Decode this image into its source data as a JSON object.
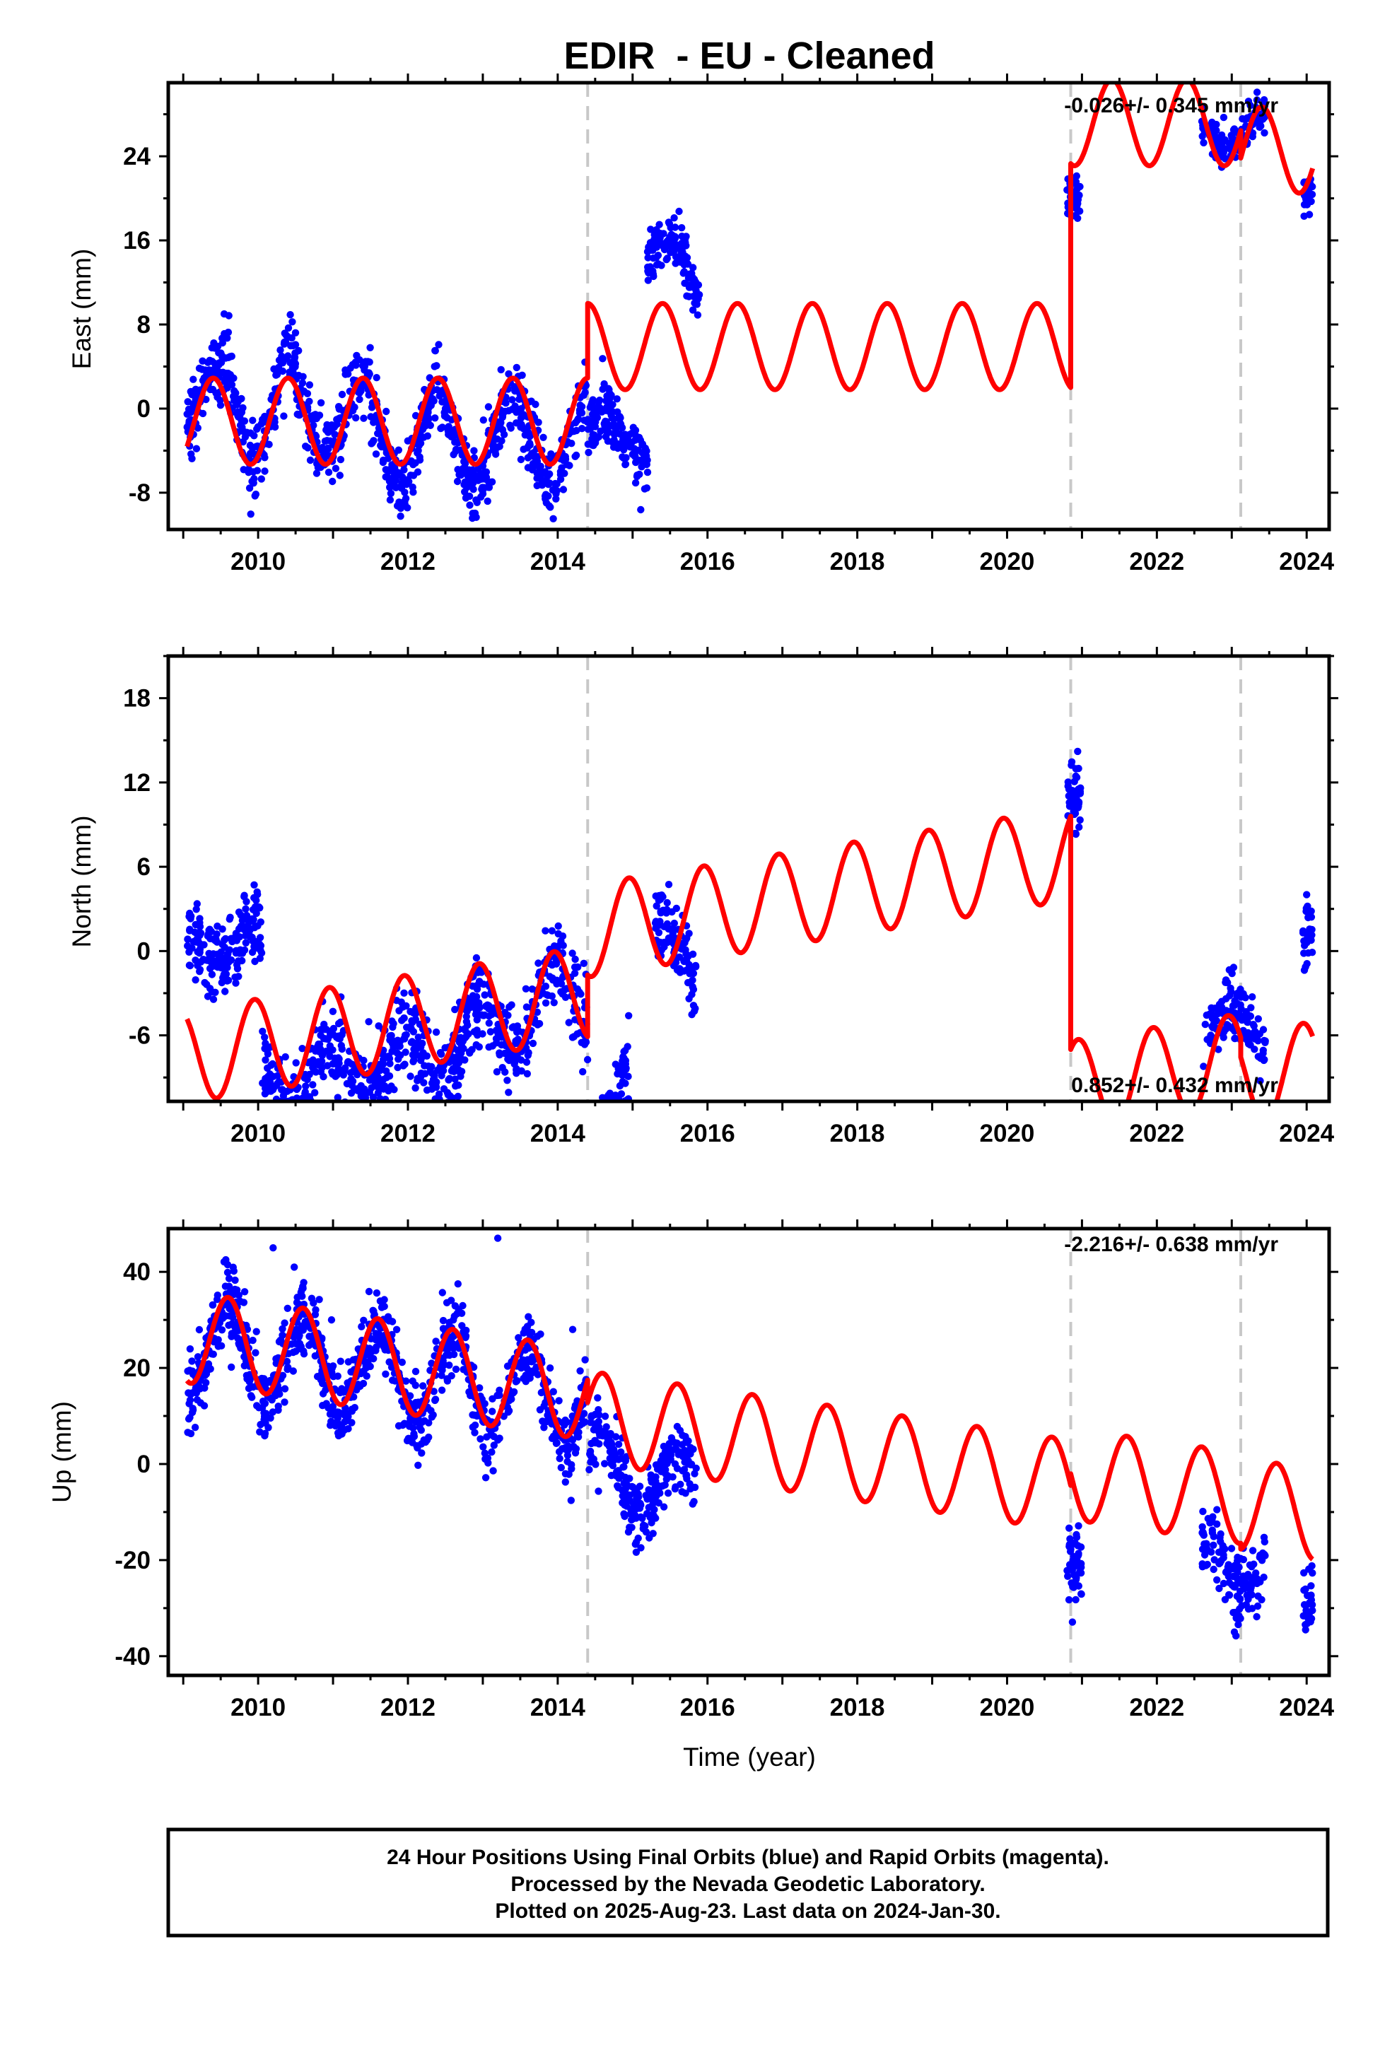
{
  "title": "EDIR  - EU - Cleaned",
  "xlabel": "Time (year)",
  "footer": {
    "line1": "24 Hour Positions Using Final Orbits (blue) and Rapid Orbits (magenta).",
    "line2": "Processed by the Nevada Geodetic Laboratory.",
    "line3": "Plotted on 2025-Aug-23. Last data on 2024-Jan-30."
  },
  "colors": {
    "data": "#0000ff",
    "model": "#ff0000",
    "steps": "#c8c8c8",
    "frame": "#000000"
  },
  "chart_data": [
    {
      "type": "scatter",
      "component": "east",
      "ylabel": "East (mm)",
      "rate_text": "-0.026+/- 0.345 mm/yr",
      "xlim": [
        2008.8,
        2024.3
      ],
      "ylim": [
        -11.5,
        31
      ],
      "xticks": [
        2010,
        2012,
        2014,
        2016,
        2018,
        2020,
        2022,
        2024
      ],
      "yticks": [
        -8,
        0,
        8,
        16,
        24
      ],
      "step_epochs": [
        2014.4,
        2020.85,
        2023.12
      ],
      "model_segments": [
        {
          "x0": 2009.05,
          "x1": 2014.4,
          "offset": -1.2,
          "trend": 0.0,
          "amp": 4.1,
          "phase": 2009.4
        },
        {
          "x0": 2014.4,
          "x1": 2020.85,
          "offset": 5.9,
          "trend": 0.0,
          "amp": 4.1,
          "phase": 2009.4
        },
        {
          "x0": 2020.85,
          "x1": 2023.12,
          "offset": 27.2,
          "trend": 0.0,
          "amp": 4.1,
          "phase": 2009.4
        },
        {
          "x0": 2023.12,
          "x1": 2024.08,
          "offset": 24.6,
          "trend": 0.0,
          "amp": 4.1,
          "phase": 2009.4
        }
      ],
      "data_segments": [
        {
          "x0": 2009.05,
          "x1": 2009.5,
          "offset": 0.0,
          "trend": 0.0,
          "amp": 3.5,
          "phase": 2009.4,
          "noise": 1.6,
          "n": 90
        },
        {
          "x0": 2009.5,
          "x1": 2010.5,
          "offset": 0.6,
          "trend": 0.0,
          "amp": 5.5,
          "phase": 2010.45,
          "noise": 1.6,
          "n": 180
        },
        {
          "x0": 2010.5,
          "x1": 2011.5,
          "offset": -0.5,
          "trend": 0.0,
          "amp": 4.0,
          "phase": 2011.4,
          "noise": 1.6,
          "n": 180
        },
        {
          "x0": 2011.5,
          "x1": 2012.5,
          "offset": -3.0,
          "trend": 0.0,
          "amp": 4.5,
          "phase": 2012.4,
          "noise": 1.7,
          "n": 180
        },
        {
          "x0": 2012.5,
          "x1": 2014.4,
          "offset": -3.0,
          "trend": 0.0,
          "amp": 4.0,
          "phase": 2013.4,
          "noise": 1.7,
          "n": 320
        },
        {
          "x0": 2014.4,
          "x1": 2015.2,
          "offset": -2.5,
          "trend": 0.0,
          "amp": 2.5,
          "phase": 2014.6,
          "noise": 1.5,
          "n": 150
        },
        {
          "x0": 2015.2,
          "x1": 2015.9,
          "offset": 12.0,
          "trend": -3.0,
          "amp": 2.5,
          "phase": 2015.5,
          "noise": 1.3,
          "n": 140
        },
        {
          "x0": 2020.8,
          "x1": 2020.98,
          "offset": 20.0,
          "trend": 0.0,
          "amp": 0.0,
          "phase": 2021.0,
          "noise": 1.0,
          "n": 50
        },
        {
          "x0": 2022.6,
          "x1": 2023.45,
          "offset": 26.5,
          "trend": 0.0,
          "amp": 1.5,
          "phase": 2023.4,
          "noise": 1.0,
          "n": 120
        },
        {
          "x0": 2023.95,
          "x1": 2024.08,
          "offset": 20.5,
          "trend": 0.0,
          "amp": 0.0,
          "phase": 2024.0,
          "noise": 0.8,
          "n": 25
        }
      ]
    },
    {
      "type": "scatter",
      "component": "north",
      "ylabel": "North (mm)",
      "rate_text": "0.852+/- 0.432 mm/yr",
      "xlim": [
        2008.8,
        2024.3
      ],
      "ylim": [
        -10.7,
        21
      ],
      "xticks": [
        2010,
        2012,
        2014,
        2016,
        2018,
        2020,
        2022,
        2024
      ],
      "yticks": [
        -6,
        0,
        6,
        12,
        18
      ],
      "step_epochs": [
        2014.4,
        2020.85,
        2023.12
      ],
      "model_segments": [
        {
          "x0": 2009.05,
          "x1": 2014.4,
          "offset": -1.6,
          "trend": 0.85,
          "amp": 3.3,
          "phase": 2009.95
        },
        {
          "x0": 2014.4,
          "x1": 2020.85,
          "offset": 2.8,
          "trend": 0.85,
          "amp": 3.3,
          "phase": 2009.95
        },
        {
          "x0": 2020.85,
          "x1": 2023.12,
          "offset": -13.8,
          "trend": 0.85,
          "amp": 3.3,
          "phase": 2009.95
        },
        {
          "x0": 2023.12,
          "x1": 2024.08,
          "offset": -15.2,
          "trend": 0.85,
          "amp": 3.3,
          "phase": 2009.95
        }
      ],
      "data_segments": [
        {
          "x0": 2009.05,
          "x1": 2010.05,
          "offset": 0.5,
          "trend": 0.0,
          "amp": 1.2,
          "phase": 2009.95,
          "noise": 1.4,
          "n": 190
        },
        {
          "x0": 2010.05,
          "x1": 2011.9,
          "offset": -3.6,
          "trend": 1.0,
          "amp": 2.0,
          "phase": 2011.95,
          "noise": 1.5,
          "n": 330
        },
        {
          "x0": 2011.9,
          "x1": 2014.4,
          "offset": 1.2,
          "trend": 2.3,
          "amp": 2.5,
          "phase": 2012.95,
          "noise": 1.4,
          "n": 440
        },
        {
          "x0": 2014.4,
          "x1": 2014.95,
          "offset": 10.0,
          "trend": 17.0,
          "amp": 0.0,
          "phase": 2015.0,
          "noise": 1.3,
          "n": 110
        },
        {
          "x0": 2014.95,
          "x1": 2015.3,
          "offset": 19.3,
          "trend": -38.0,
          "amp": 0.0,
          "phase": 2015.0,
          "noise": 1.4,
          "n": 70
        },
        {
          "x0": 2015.3,
          "x1": 2015.85,
          "offset": -2.0,
          "trend": -5.0,
          "amp": 1.0,
          "phase": 2015.5,
          "noise": 1.3,
          "n": 100
        },
        {
          "x0": 2020.8,
          "x1": 2020.98,
          "offset": 11.0,
          "trend": 0.0,
          "amp": 0.0,
          "phase": 2021.0,
          "noise": 1.3,
          "n": 45
        },
        {
          "x0": 2022.6,
          "x1": 2023.45,
          "offset": -5.5,
          "trend": 0.0,
          "amp": 1.2,
          "phase": 2023.0,
          "noise": 1.2,
          "n": 130
        },
        {
          "x0": 2023.95,
          "x1": 2024.08,
          "offset": 1.0,
          "trend": 0.0,
          "amp": 0.0,
          "phase": 2024.0,
          "noise": 1.1,
          "n": 25
        }
      ]
    },
    {
      "type": "scatter",
      "component": "up",
      "ylabel": "Up (mm)",
      "rate_text": "-2.216+/- 0.638 mm/yr",
      "xlim": [
        2008.8,
        2024.3
      ],
      "ylim": [
        -44,
        49
      ],
      "xticks": [
        2010,
        2012,
        2014,
        2016,
        2018,
        2020,
        2022,
        2024
      ],
      "yticks": [
        -40,
        -20,
        0,
        20,
        40
      ],
      "step_epochs": [
        2014.4,
        2020.85,
        2023.12
      ],
      "model_segments": [
        {
          "x0": 2009.05,
          "x1": 2014.4,
          "offset": 11.0,
          "trend": -2.216,
          "amp": 9.5,
          "phase": 2009.6
        },
        {
          "x0": 2014.4,
          "x1": 2020.85,
          "offset": 6.3,
          "trend": -2.216,
          "amp": 9.5,
          "phase": 2009.6
        },
        {
          "x0": 2020.85,
          "x1": 2023.12,
          "offset": 8.7,
          "trend": -2.216,
          "amp": 9.5,
          "phase": 2009.6
        },
        {
          "x0": 2023.12,
          "x1": 2024.08,
          "offset": 7.5,
          "trend": -2.216,
          "amp": 9.5,
          "phase": 2009.6
        }
      ],
      "data_segments": [
        {
          "x0": 2009.05,
          "x1": 2014.4,
          "offset": 9.5,
          "trend": -2.2,
          "amp": 9.5,
          "phase": 2009.6,
          "noise": 4.0,
          "n": 950
        },
        {
          "x0": 2014.4,
          "x1": 2015.85,
          "offset": -6.0,
          "trend": -3.0,
          "amp": 8.0,
          "phase": 2014.6,
          "noise": 4.0,
          "n": 260
        },
        {
          "x0": 2020.8,
          "x1": 2021.0,
          "offset": -22.0,
          "trend": 0.0,
          "amp": 0.0,
          "phase": 2021.0,
          "noise": 4.0,
          "n": 45
        },
        {
          "x0": 2022.6,
          "x1": 2023.45,
          "offset": -21.0,
          "trend": 0.0,
          "amp": 5.0,
          "phase": 2022.65,
          "noise": 4.0,
          "n": 150
        },
        {
          "x0": 2023.95,
          "x1": 2024.08,
          "offset": -28.0,
          "trend": 0.0,
          "amp": 0.0,
          "phase": 2024.0,
          "noise": 4.0,
          "n": 25
        }
      ],
      "outliers": [
        {
          "x": 2010.2,
          "y": 45
        },
        {
          "x": 2013.2,
          "y": 47
        },
        {
          "x": 2010.98,
          "y": 30
        },
        {
          "x": 2014.2,
          "y": 28
        }
      ]
    }
  ]
}
